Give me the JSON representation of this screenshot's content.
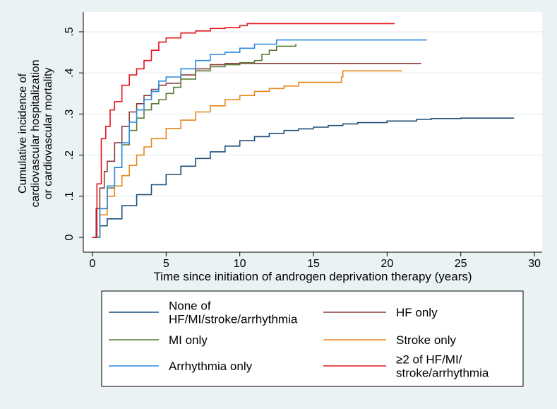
{
  "chart_data": {
    "type": "line",
    "ylabel_lines": [
      "Cumulative incidence of",
      "cardiovascular hospitalization",
      "or cardiovascular mortality"
    ],
    "xlabel": "Time since initiation of androgen deprivation therapy (years)",
    "xlim": [
      0,
      30
    ],
    "ylim": [
      0,
      0.5
    ],
    "x_ticks": [
      0,
      5,
      10,
      15,
      20,
      25,
      30
    ],
    "x_tick_labels": [
      "0",
      "5",
      "10",
      "15",
      "20",
      "25",
      "30"
    ],
    "y_ticks": [
      0,
      0.1,
      0.2,
      0.3,
      0.4,
      0.5
    ],
    "y_tick_labels": [
      "0",
      ".1",
      ".2",
      ".3",
      ".4",
      ".5"
    ],
    "grid": "horizontal",
    "legend_position": "bottom",
    "colors": {
      "background": "#eaf2f3",
      "plot_background": "#ffffff",
      "grid": "#eaf2f3"
    },
    "series": [
      {
        "name": "None of HF/MI/stroke/arrhythmia",
        "legend_lines": [
          "None of",
          "HF/MI/stroke/arrhythmia"
        ],
        "color": "#1f4e79",
        "points": [
          [
            0,
            0
          ],
          [
            0.5,
            0.028
          ],
          [
            1,
            0.045
          ],
          [
            2,
            0.077
          ],
          [
            3,
            0.104
          ],
          [
            4,
            0.128
          ],
          [
            5,
            0.153
          ],
          [
            6,
            0.173
          ],
          [
            7,
            0.192
          ],
          [
            8,
            0.208
          ],
          [
            9,
            0.222
          ],
          [
            10,
            0.235
          ],
          [
            11,
            0.245
          ],
          [
            12,
            0.253
          ],
          [
            13,
            0.26
          ],
          [
            14,
            0.264
          ],
          [
            15,
            0.268
          ],
          [
            16,
            0.272
          ],
          [
            17,
            0.276
          ],
          [
            18,
            0.279
          ],
          [
            20,
            0.283
          ],
          [
            22,
            0.287
          ],
          [
            23,
            0.289
          ],
          [
            25,
            0.29
          ],
          [
            28.6,
            0.29
          ]
        ]
      },
      {
        "name": "HF only",
        "legend_lines": [
          "HF only"
        ],
        "color": "#8a3a3a",
        "points": [
          [
            0,
            0
          ],
          [
            0.25,
            0.07
          ],
          [
            0.5,
            0.12
          ],
          [
            0.8,
            0.16
          ],
          [
            1,
            0.185
          ],
          [
            1.5,
            0.23
          ],
          [
            2,
            0.27
          ],
          [
            2.5,
            0.305
          ],
          [
            3,
            0.325
          ],
          [
            3.5,
            0.345
          ],
          [
            4,
            0.36
          ],
          [
            4.5,
            0.37
          ],
          [
            5,
            0.375
          ],
          [
            6,
            0.395
          ],
          [
            7,
            0.41
          ],
          [
            8,
            0.42
          ],
          [
            9,
            0.423
          ],
          [
            10,
            0.423
          ],
          [
            15,
            0.423
          ],
          [
            22.3,
            0.423
          ]
        ]
      },
      {
        "name": "MI only",
        "legend_lines": [
          "MI only"
        ],
        "color": "#5a7a36",
        "points": [
          [
            0,
            0
          ],
          [
            0.5,
            0.07
          ],
          [
            1,
            0.12
          ],
          [
            1.5,
            0.17
          ],
          [
            2,
            0.225
          ],
          [
            2.5,
            0.26
          ],
          [
            3,
            0.29
          ],
          [
            3.5,
            0.31
          ],
          [
            4,
            0.325
          ],
          [
            4.5,
            0.335
          ],
          [
            5,
            0.35
          ],
          [
            5.5,
            0.365
          ],
          [
            6,
            0.385
          ],
          [
            7,
            0.405
          ],
          [
            8,
            0.415
          ],
          [
            9,
            0.42
          ],
          [
            10,
            0.425
          ],
          [
            11,
            0.43
          ],
          [
            11.5,
            0.445
          ],
          [
            12,
            0.455
          ],
          [
            12.5,
            0.465
          ],
          [
            13.8,
            0.47
          ]
        ]
      },
      {
        "name": "Stroke only",
        "legend_lines": [
          "Stroke only"
        ],
        "color": "#e8861a",
        "points": [
          [
            0,
            0
          ],
          [
            0.5,
            0.055
          ],
          [
            1,
            0.1
          ],
          [
            1.5,
            0.125
          ],
          [
            2,
            0.15
          ],
          [
            2.5,
            0.175
          ],
          [
            3,
            0.2
          ],
          [
            3.5,
            0.22
          ],
          [
            4,
            0.24
          ],
          [
            5,
            0.265
          ],
          [
            6,
            0.285
          ],
          [
            7,
            0.305
          ],
          [
            8,
            0.32
          ],
          [
            9,
            0.335
          ],
          [
            10,
            0.345
          ],
          [
            11,
            0.355
          ],
          [
            12,
            0.362
          ],
          [
            13,
            0.368
          ],
          [
            14,
            0.377
          ],
          [
            16,
            0.377
          ],
          [
            16.9,
            0.39
          ],
          [
            17,
            0.405
          ],
          [
            21,
            0.405
          ]
        ]
      },
      {
        "name": "Arrhythmia only",
        "legend_lines": [
          "Arrhythmia only"
        ],
        "color": "#2a8ae0",
        "points": [
          [
            0,
            0
          ],
          [
            0.5,
            0.07
          ],
          [
            1,
            0.125
          ],
          [
            1.5,
            0.17
          ],
          [
            2,
            0.23
          ],
          [
            2.5,
            0.28
          ],
          [
            3,
            0.31
          ],
          [
            3.5,
            0.335
          ],
          [
            4,
            0.355
          ],
          [
            4.5,
            0.38
          ],
          [
            5,
            0.39
          ],
          [
            6,
            0.41
          ],
          [
            7,
            0.43
          ],
          [
            8,
            0.445
          ],
          [
            9,
            0.45
          ],
          [
            10,
            0.46
          ],
          [
            11,
            0.47
          ],
          [
            12,
            0.47
          ],
          [
            12.5,
            0.48
          ],
          [
            22.7,
            0.48
          ]
        ]
      },
      {
        "name": "≥2 of HF/MI/stroke/arrhythmia",
        "legend_lines": [
          "≥2 of HF/MI/",
          "stroke/arrhythmia"
        ],
        "color": "#e8141c",
        "points": [
          [
            0,
            0
          ],
          [
            0.3,
            0.13
          ],
          [
            0.6,
            0.24
          ],
          [
            0.9,
            0.27
          ],
          [
            1.2,
            0.31
          ],
          [
            1.5,
            0.33
          ],
          [
            2,
            0.37
          ],
          [
            2.5,
            0.395
          ],
          [
            3,
            0.41
          ],
          [
            3.5,
            0.43
          ],
          [
            4,
            0.455
          ],
          [
            4.5,
            0.475
          ],
          [
            5,
            0.485
          ],
          [
            6,
            0.497
          ],
          [
            7,
            0.502
          ],
          [
            8,
            0.508
          ],
          [
            9,
            0.51
          ],
          [
            10,
            0.515
          ],
          [
            10.5,
            0.52
          ],
          [
            20.5,
            0.52
          ]
        ]
      }
    ]
  }
}
